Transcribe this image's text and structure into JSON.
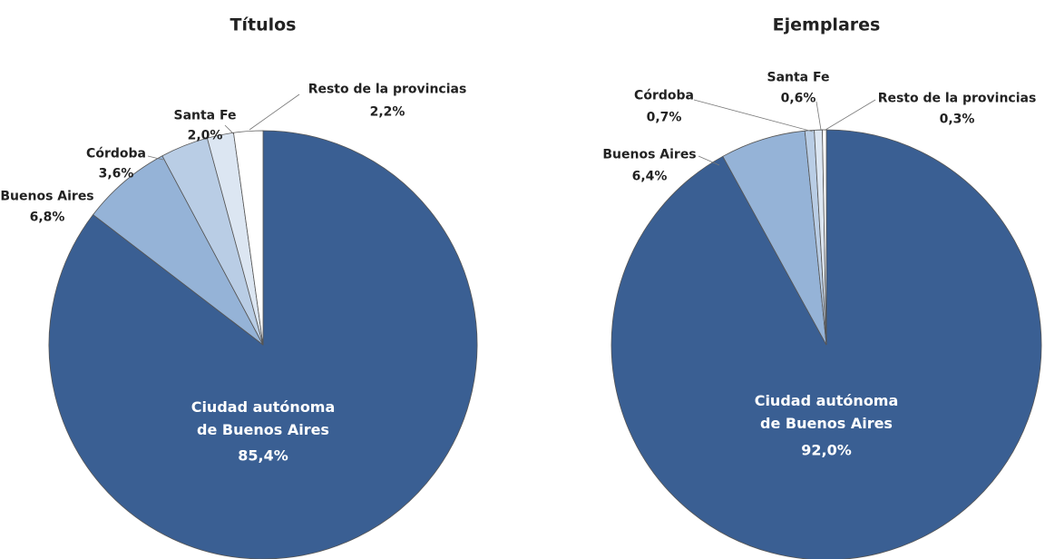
{
  "chart_data": [
    {
      "type": "pie",
      "title": "Títulos",
      "categories": [
        "Ciudad autónoma de Buenos Aires",
        "Buenos Aires",
        "Córdoba",
        "Santa Fe",
        "Resto de la provincias"
      ],
      "values": [
        85.4,
        6.8,
        3.6,
        2.0,
        2.2
      ],
      "value_labels": [
        "85,4%",
        "6,8%",
        "3,6%",
        "2,0%",
        "2,2%"
      ],
      "colors": [
        "#3a5f93",
        "#95b3d7",
        "#b9cde5",
        "#dce6f2",
        "#ffffff"
      ]
    },
    {
      "type": "pie",
      "title": "Ejemplares",
      "categories": [
        "Ciudad autónoma de Buenos Aires",
        "Buenos Aires",
        "Córdoba",
        "Santa Fe",
        "Resto de la provincias"
      ],
      "values": [
        92.0,
        6.4,
        0.7,
        0.6,
        0.3
      ],
      "value_labels": [
        "92,0%",
        "6,4%",
        "0,7%",
        "0,6%",
        "0,3%"
      ],
      "colors": [
        "#3a5f93",
        "#95b3d7",
        "#b9cde5",
        "#dce6f2",
        "#ffffff"
      ]
    }
  ]
}
